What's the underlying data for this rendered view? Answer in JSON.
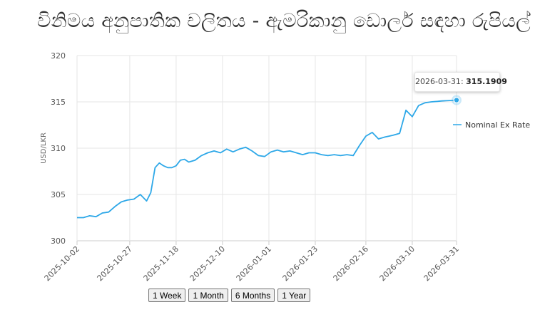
{
  "title": "විනිමය අනුපාතික චලිතය - ඇමරිකානු ඩොලර් සඳහා රුපියල්",
  "range_buttons": [
    {
      "label": "1 Week"
    },
    {
      "label": "1 Month"
    },
    {
      "label": "6 Months"
    },
    {
      "label": "1 Year"
    }
  ],
  "tooltip": {
    "date": "2026-03-31",
    "separator": ": ",
    "value": "315.1909"
  },
  "colors": {
    "series": "#2ea8e8",
    "grid": "#e6e6e6",
    "axis": "#cccccc"
  },
  "chart_data": {
    "type": "line",
    "ylabel": "USD/LKR",
    "xlabel": "",
    "ylim": [
      300,
      320
    ],
    "yticks": [
      300,
      305,
      310,
      315,
      320
    ],
    "xticks": [
      "2025-10-02",
      "2025-10-27",
      "2025-11-18",
      "2025-12-10",
      "2026-01-01",
      "2026-01-23",
      "2026-02-16",
      "2026-03-10",
      "2026-03-31"
    ],
    "grid": true,
    "legend_position": "right",
    "series": [
      {
        "name": "Nominal Ex Rate",
        "x": [
          "2025-10-02",
          "2025-10-05",
          "2025-10-08",
          "2025-10-11",
          "2025-10-14",
          "2025-10-17",
          "2025-10-20",
          "2025-10-23",
          "2025-10-26",
          "2025-10-29",
          "2025-11-01",
          "2025-11-04",
          "2025-11-06",
          "2025-11-08",
          "2025-11-10",
          "2025-11-12",
          "2025-11-14",
          "2025-11-16",
          "2025-11-18",
          "2025-11-20",
          "2025-11-22",
          "2025-11-24",
          "2025-11-27",
          "2025-11-30",
          "2025-12-03",
          "2025-12-06",
          "2025-12-09",
          "2025-12-12",
          "2025-12-15",
          "2025-12-18",
          "2025-12-21",
          "2025-12-24",
          "2025-12-27",
          "2025-12-30",
          "2026-01-02",
          "2026-01-05",
          "2026-01-08",
          "2026-01-11",
          "2026-01-14",
          "2026-01-17",
          "2026-01-20",
          "2026-01-23",
          "2026-01-26",
          "2026-01-29",
          "2026-02-01",
          "2026-02-04",
          "2026-02-07",
          "2026-02-10",
          "2026-02-13",
          "2026-02-16",
          "2026-02-19",
          "2026-02-22",
          "2026-02-25",
          "2026-02-27",
          "2026-03-01",
          "2026-03-04",
          "2026-03-07",
          "2026-03-10",
          "2026-03-13",
          "2026-03-16",
          "2026-03-19",
          "2026-03-22",
          "2026-03-24",
          "2026-03-26",
          "2026-03-28",
          "2026-03-31"
        ],
        "y": [
          302.5,
          302.5,
          302.7,
          302.6,
          303.0,
          303.1,
          303.7,
          304.2,
          304.4,
          304.5,
          305.0,
          304.3,
          305.2,
          307.9,
          308.4,
          308.1,
          307.9,
          307.9,
          308.1,
          308.7,
          308.8,
          308.5,
          308.7,
          309.2,
          309.5,
          309.7,
          309.5,
          309.9,
          309.6,
          309.9,
          310.1,
          309.7,
          309.2,
          309.1,
          309.6,
          309.8,
          309.6,
          309.7,
          309.5,
          309.3,
          309.5,
          309.5,
          309.3,
          309.2,
          309.3,
          309.2,
          309.3,
          309.2,
          310.3,
          311.3,
          311.7,
          311.0,
          311.2,
          311.3,
          311.4,
          311.6,
          314.1,
          313.4,
          314.6,
          314.9,
          315.0,
          315.05,
          315.1,
          315.12,
          315.15,
          315.1909
        ]
      }
    ]
  }
}
